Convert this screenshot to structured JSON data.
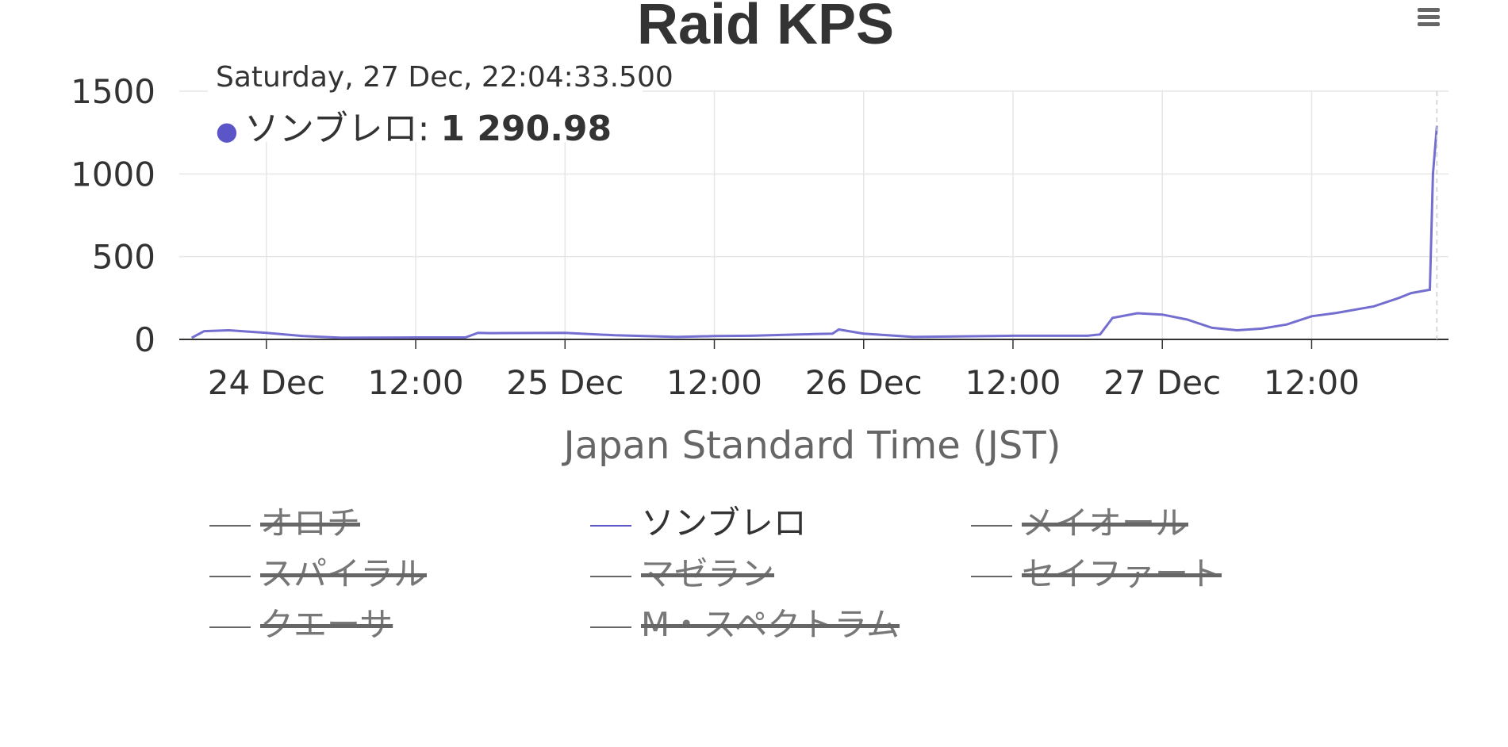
{
  "chart_data": {
    "type": "line",
    "title": "Raid KPS",
    "xlabel": "Japan Standard Time (JST)",
    "ylabel": "",
    "x_tick_labels": [
      "24 Dec",
      "12:00",
      "25 Dec",
      "12:00",
      "26 Dec",
      "12:00",
      "27 Dec",
      "12:00"
    ],
    "x_ticks": [
      "2014-12-24 00:00",
      "2014-12-24 12:00",
      "2014-12-25 00:00",
      "2014-12-25 12:00",
      "2014-12-26 00:00",
      "2014-12-26 12:00",
      "2014-12-27 00:00",
      "2014-12-27 12:00"
    ],
    "xlim": [
      "2014-12-23 17:00",
      "2014-12-27 23:00"
    ],
    "y_tick_labels": [
      "0",
      "500",
      "1000",
      "1500"
    ],
    "ylim": [
      0,
      1500
    ],
    "grid": true,
    "legend_placement": "bottom",
    "series": [
      {
        "name": "ソンブレロ",
        "color": "#5b55c7",
        "x": [
          "2014-12-23 18:00",
          "2014-12-23 19:00",
          "2014-12-23 21:00",
          "2014-12-24 00:00",
          "2014-12-24 03:00",
          "2014-12-24 06:00",
          "2014-12-24 12:00",
          "2014-12-24 16:00",
          "2014-12-24 17:00",
          "2014-12-24 18:00",
          "2014-12-25 00:00",
          "2014-12-25 04:00",
          "2014-12-25 09:00",
          "2014-12-25 12:00",
          "2014-12-25 15:00",
          "2014-12-25 20:00",
          "2014-12-25 21:30",
          "2014-12-25 22:00",
          "2014-12-26 00:00",
          "2014-12-26 04:00",
          "2014-12-26 12:00",
          "2014-12-26 18:00",
          "2014-12-26 19:00",
          "2014-12-26 20:00",
          "2014-12-26 22:00",
          "2014-12-27 00:00",
          "2014-12-27 02:00",
          "2014-12-27 04:00",
          "2014-12-27 06:00",
          "2014-12-27 08:00",
          "2014-12-27 10:00",
          "2014-12-27 12:00",
          "2014-12-27 14:00",
          "2014-12-27 17:00",
          "2014-12-27 19:00",
          "2014-12-27 20:00",
          "2014-12-27 21:30",
          "2014-12-27 21:45",
          "2014-12-27 22:04"
        ],
        "values": [
          10,
          50,
          55,
          40,
          20,
          10,
          12,
          12,
          40,
          38,
          40,
          25,
          15,
          20,
          22,
          32,
          35,
          60,
          35,
          15,
          22,
          22,
          30,
          130,
          158,
          150,
          120,
          70,
          55,
          65,
          90,
          140,
          160,
          200,
          250,
          280,
          300,
          1000,
          1290.98
        ]
      }
    ]
  },
  "tooltip": {
    "date": "Saturday, 27 Dec, 22:04:33.500",
    "series_name": "ソンブレロ",
    "value": "1 290.98"
  },
  "legend": {
    "items": [
      {
        "label": "オロチ",
        "visible": false
      },
      {
        "label": "ソンブレロ",
        "visible": true
      },
      {
        "label": "メイオール",
        "visible": false
      },
      {
        "label": "スパイラル",
        "visible": false
      },
      {
        "label": "マゼラン",
        "visible": false
      },
      {
        "label": "セイファート",
        "visible": false
      },
      {
        "label": "クエーサ",
        "visible": false
      },
      {
        "label": "M・スペクトラム",
        "visible": false
      }
    ]
  }
}
